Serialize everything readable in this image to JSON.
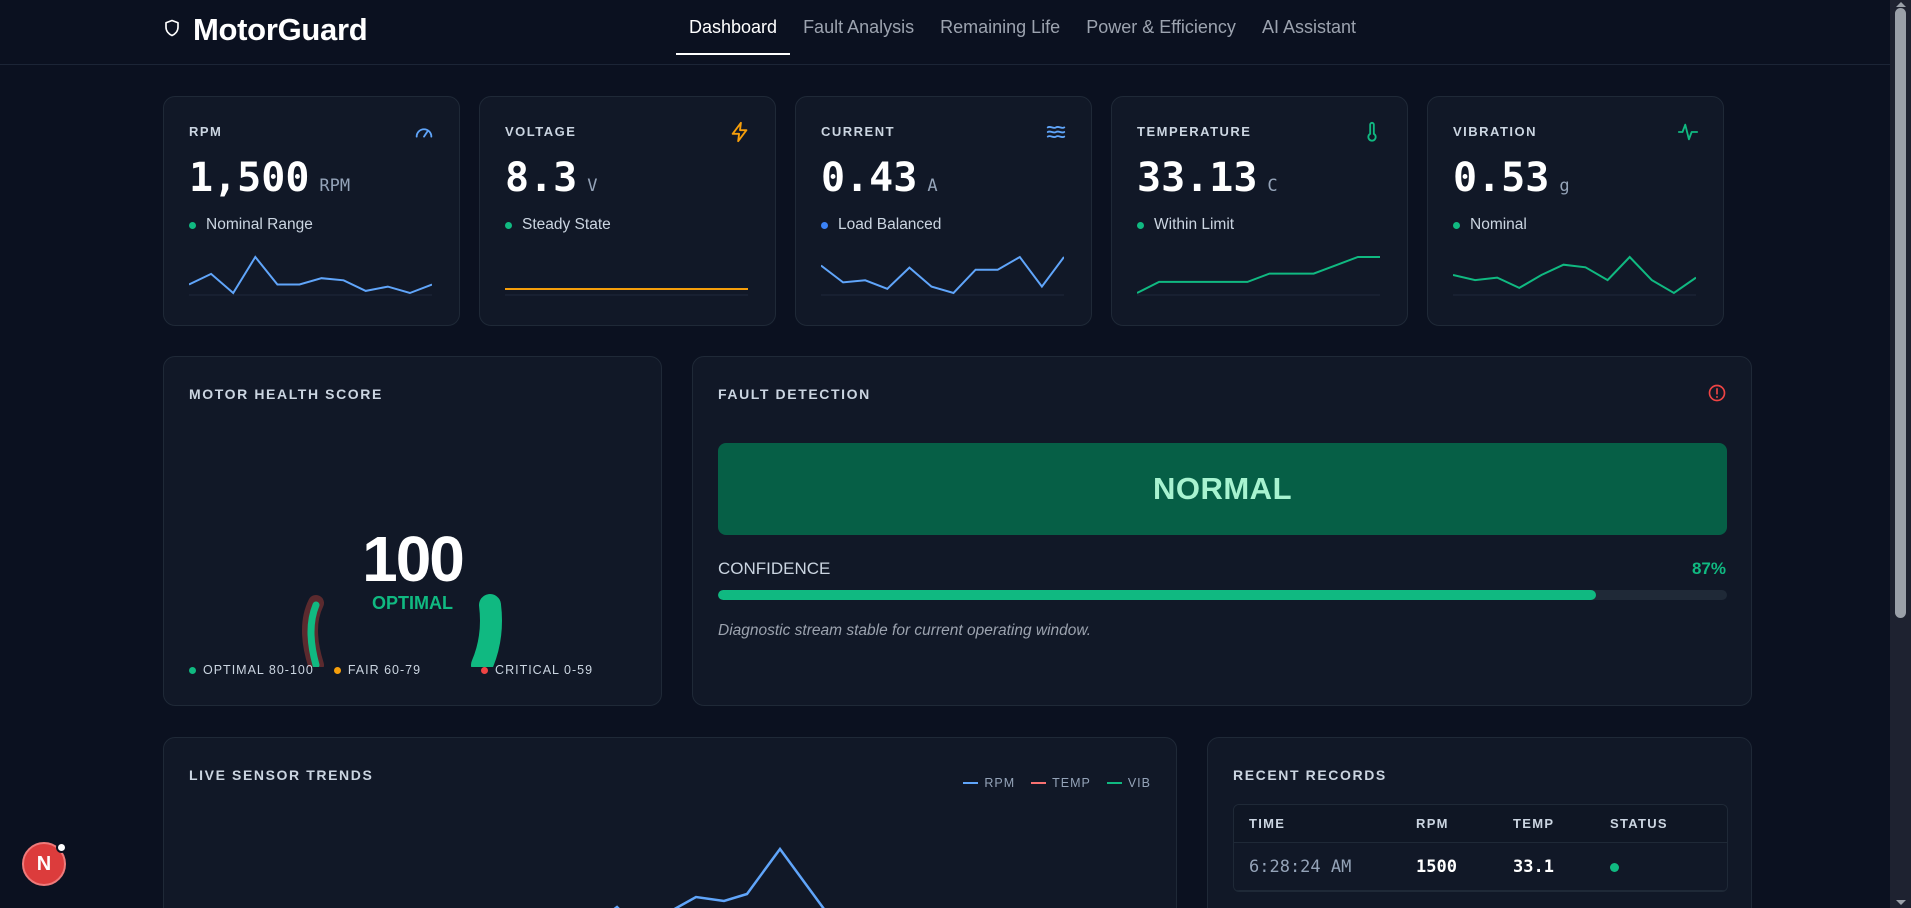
{
  "app": {
    "name": "MotorGuard",
    "brand_icon": "shield-icon"
  },
  "nav": {
    "items": [
      "Dashboard",
      "Fault Analysis",
      "Remaining Life",
      "Power & Efficiency",
      "AI Assistant"
    ],
    "active": "Dashboard"
  },
  "metrics": [
    {
      "label": "RPM",
      "value": "1,500",
      "unit": "RPM",
      "status": "Nominal Range",
      "status_color": "#10b981",
      "icon": "gauge-icon",
      "icon_color": "#60a5fa",
      "line_color": "#60a5fa",
      "trend": [
        6,
        11,
        2,
        19,
        6,
        6,
        9,
        8,
        3,
        5,
        2,
        6
      ]
    },
    {
      "label": "VOLTAGE",
      "value": "8.3",
      "unit": "V",
      "status": "Steady State",
      "status_color": "#10b981",
      "icon": "lightning-icon",
      "icon_color": "#f59e0b",
      "line_color": "#f59e0b",
      "trend": [
        5,
        5,
        5,
        5,
        5,
        5,
        5,
        5,
        5,
        5,
        5,
        5
      ]
    },
    {
      "label": "CURRENT",
      "value": "0.43",
      "unit": "A",
      "status": "Load Balanced",
      "status_color": "#3b82f6",
      "icon": "waves-icon",
      "icon_color": "#60a5fa",
      "line_color": "#60a5fa",
      "trend": [
        14,
        6,
        7,
        3,
        13,
        4,
        1,
        12,
        12,
        18,
        4,
        18
      ]
    },
    {
      "label": "TEMPERATURE",
      "value": "33.13",
      "unit": "C",
      "status": "Within Limit",
      "status_color": "#10b981",
      "icon": "thermometer-icon",
      "icon_color": "#10b981",
      "line_color": "#10b981",
      "trend": [
        33.0,
        33.04,
        33.04,
        33.04,
        33.04,
        33.04,
        33.07,
        33.07,
        33.07,
        33.1,
        33.13,
        33.13
      ]
    },
    {
      "label": "VIBRATION",
      "value": "0.53",
      "unit": "g",
      "status": "Nominal",
      "status_color": "#10b981",
      "icon": "pulse-icon",
      "icon_color": "#10b981",
      "line_color": "#10b981",
      "trend": [
        0.46,
        0.44,
        0.45,
        0.41,
        0.46,
        0.5,
        0.49,
        0.44,
        0.53,
        0.44,
        0.39,
        0.45
      ]
    }
  ],
  "health": {
    "title": "MOTOR HEALTH SCORE",
    "score": "100",
    "rating": "OPTIMAL",
    "legend": [
      {
        "label": "OPTIMAL 80-100",
        "color": "#10b981"
      },
      {
        "label": "FAIR 60-79",
        "color": "#f59e0b"
      },
      {
        "label": "CRITICAL 0-59",
        "color": "#ef4444"
      }
    ]
  },
  "fault": {
    "title": "FAULT DETECTION",
    "icon": "alert-circle-icon",
    "state": "NORMAL",
    "confidence_label": "CONFIDENCE",
    "confidence_value": "87%",
    "confidence_fraction": 0.87,
    "note": "Diagnostic stream stable for current operating window."
  },
  "trends": {
    "title": "LIVE SENSOR TRENDS",
    "legend": [
      {
        "label": "RPM",
        "color": "#60a5fa"
      },
      {
        "label": "TEMP",
        "color": "#f87171"
      },
      {
        "label": "VIB",
        "color": "#10b981"
      }
    ]
  },
  "records": {
    "title": "RECENT RECORDS",
    "columns": [
      "TIME",
      "RPM",
      "TEMP",
      "STATUS"
    ],
    "rows": [
      {
        "time": "6:28:24 AM",
        "rpm": "1500",
        "temp": "33.1",
        "status_color": "#10b981"
      }
    ]
  },
  "fab": {
    "letter": "N"
  }
}
